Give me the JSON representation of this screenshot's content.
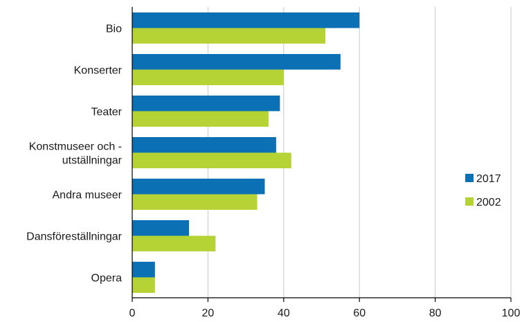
{
  "chart_data": {
    "type": "bar",
    "orientation": "horizontal",
    "categories": [
      [
        "Bio"
      ],
      [
        "Konserter"
      ],
      [
        "Teater"
      ],
      [
        "Konstmuseer och -",
        "utställningar"
      ],
      [
        "Andra museer"
      ],
      [
        "Dansföreställningar"
      ],
      [
        "Opera"
      ]
    ],
    "series": [
      {
        "name": "2017",
        "color": "#0b71b4",
        "values": [
          60,
          55,
          39,
          38,
          35,
          15,
          6
        ]
      },
      {
        "name": "2002",
        "color": "#b5d334",
        "values": [
          51,
          40,
          36,
          42,
          33,
          22,
          6
        ]
      }
    ],
    "xlim": [
      0,
      100
    ],
    "x_ticks": [
      0,
      20,
      40,
      60,
      80,
      100
    ],
    "grid": true,
    "legend_position": "right"
  }
}
